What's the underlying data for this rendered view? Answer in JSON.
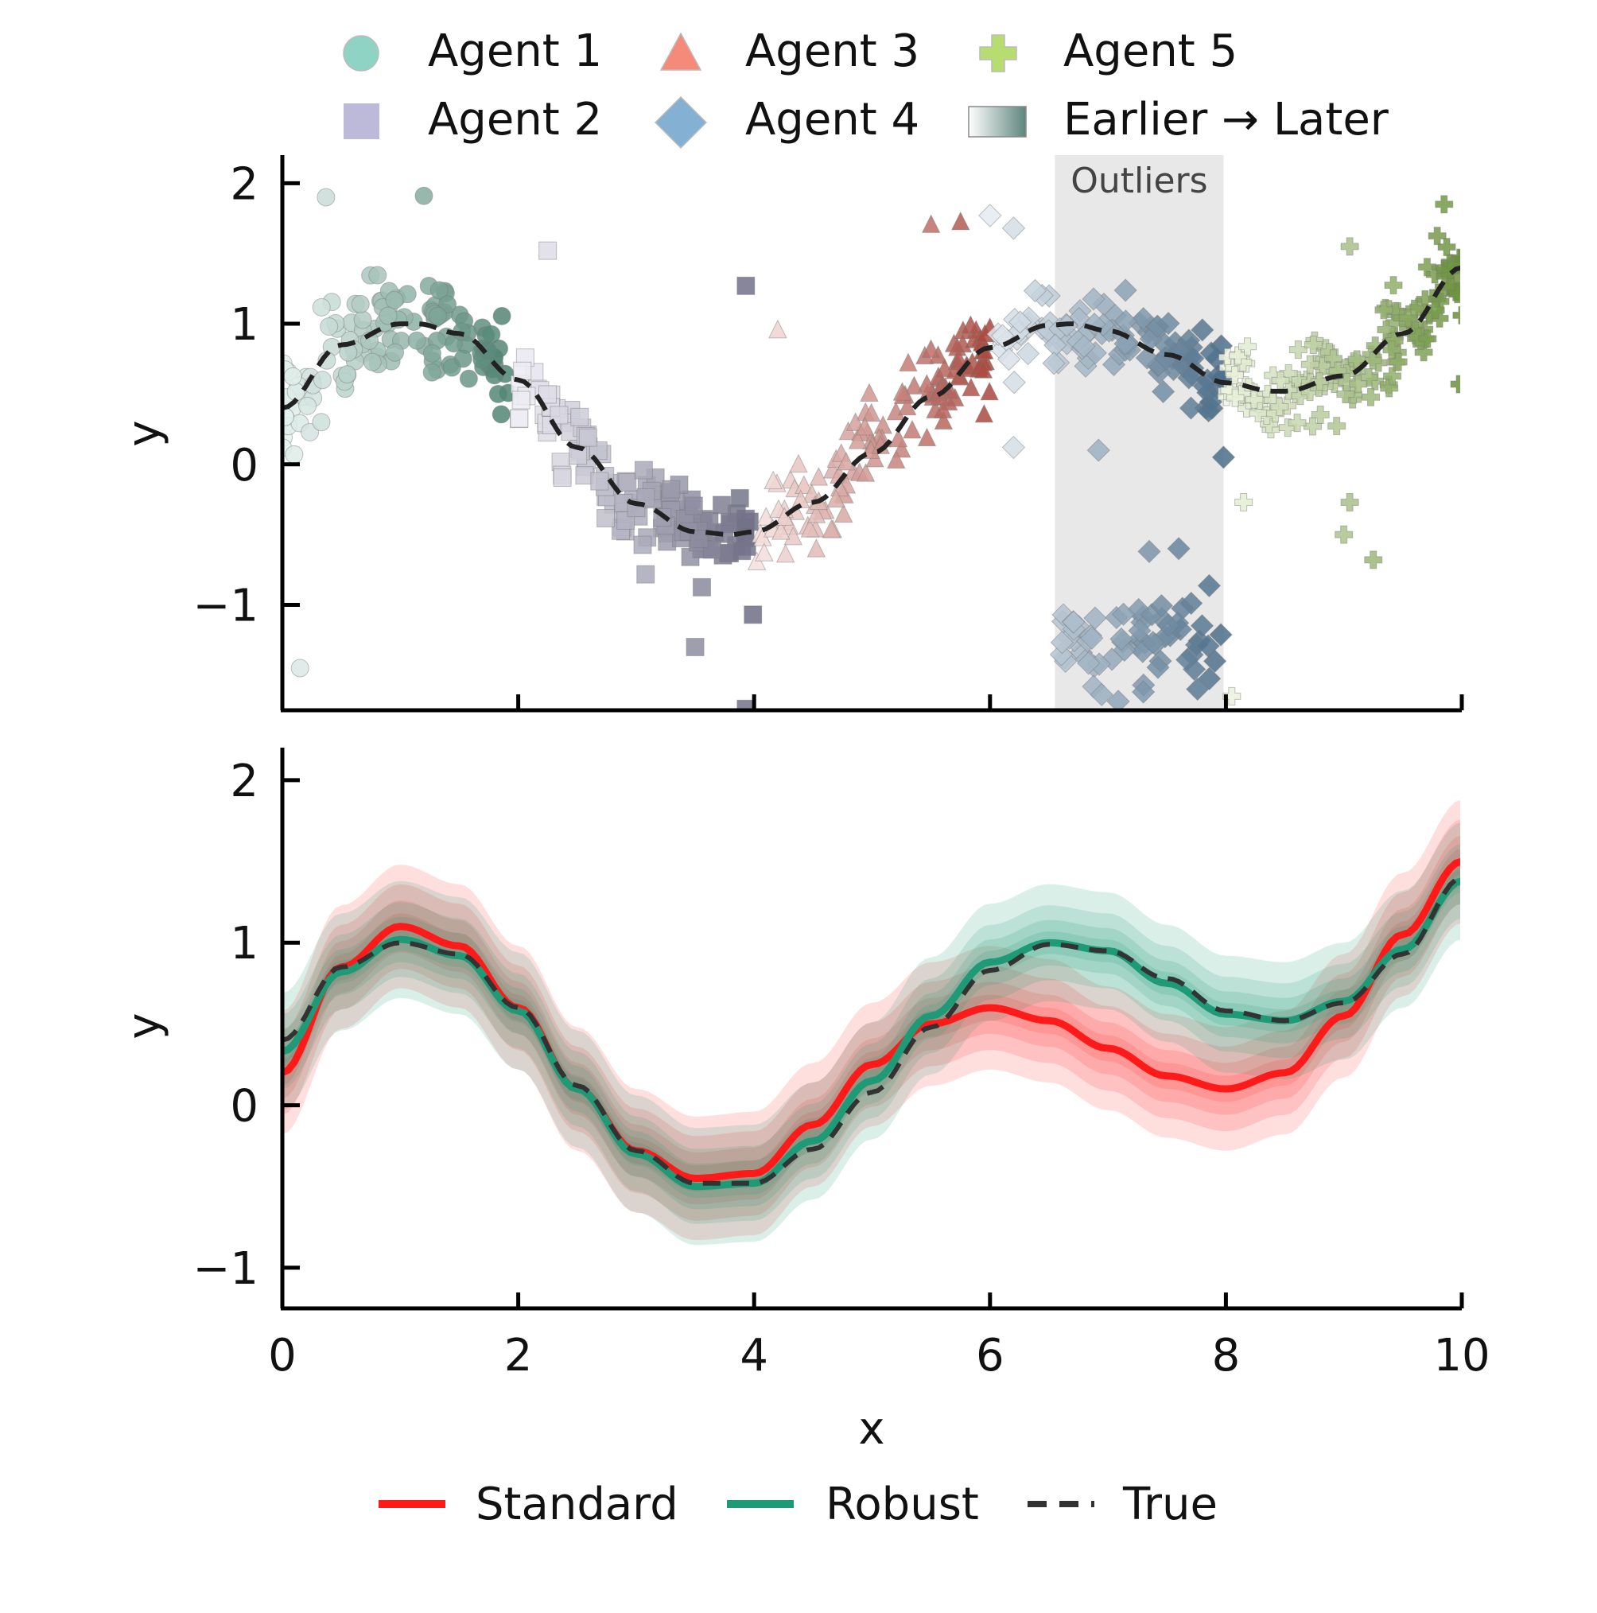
{
  "chart_data": [
    {
      "type": "scatter",
      "panel": "top",
      "xlabel": "",
      "ylabel": "y",
      "xlim": [
        0,
        10
      ],
      "ylim": [
        -1.75,
        2.2
      ],
      "xticks": [
        0,
        2,
        4,
        6,
        8,
        10
      ],
      "yticks": [
        -1,
        0,
        1,
        2
      ],
      "ytick_labels": [
        "−1",
        "0",
        "1",
        "2"
      ],
      "grid": false,
      "legend_placement": "top (above plot, 3 columns)",
      "legend": [
        {
          "label": "Agent 1",
          "marker": "circle",
          "color": "#8fd3c4"
        },
        {
          "label": "Agent 2",
          "marker": "square",
          "color": "#bcbad8"
        },
        {
          "label": "Agent 3",
          "marker": "triangle",
          "color": "#f58a7a"
        },
        {
          "label": "Agent 4",
          "marker": "diamond",
          "color": "#84b0d3"
        },
        {
          "label": "Agent 5",
          "marker": "plus",
          "color": "#b7dc6f"
        },
        {
          "label": "Earlier → Later",
          "marker": "gradient",
          "color": "#5e857c"
        }
      ],
      "outlier_region": {
        "label": "Outliers",
        "x": [
          6.55,
          7.98
        ],
        "color": "#e8e8e8"
      },
      "agents": [
        {
          "name": "Agent 1",
          "x_range": [
            0,
            1.92
          ],
          "light_color": "#e6f2ef",
          "dark_color": "#4d8270",
          "marker": "circle",
          "n": 130,
          "noise": 0.18,
          "extra_points": [
            [
              0.37,
              1.9
            ],
            [
              1.2,
              1.91
            ],
            [
              0.15,
              -1.45
            ],
            [
              0.1,
              0.07
            ],
            [
              0.33,
              0.3
            ]
          ]
        },
        {
          "name": "Agent 2",
          "x_range": [
            2.0,
            4.0
          ],
          "light_color": "#eeedf5",
          "dark_color": "#6e6d85",
          "marker": "square",
          "n": 130,
          "noise": 0.16,
          "extra_points": [
            [
              2.25,
              1.52
            ],
            [
              3.93,
              1.27
            ],
            [
              3.5,
              -1.3
            ],
            [
              3.99,
              -1.07
            ],
            [
              3.93,
              -1.74
            ]
          ]
        },
        {
          "name": "Agent 3",
          "x_range": [
            4.0,
            6.0
          ],
          "light_color": "#f6e3e1",
          "dark_color": "#a9473d",
          "marker": "triangle",
          "n": 130,
          "noise": 0.18,
          "extra_points": [
            [
              4.2,
              0.95
            ],
            [
              5.5,
              1.7
            ],
            [
              5.75,
              1.72
            ],
            [
              5.95,
              0.35
            ]
          ]
        },
        {
          "name": "Agent 4",
          "x_range": [
            6.0,
            7.98
          ],
          "light_color": "#e4ebf1",
          "dark_color": "#4a6d89",
          "marker": "diamond",
          "n": 110,
          "noise": 0.14,
          "outlier_n": 65,
          "outlier_center": -1.25,
          "outlier_x_range": [
            6.55,
            7.98
          ],
          "extra_points": [
            [
              6.0,
              1.77
            ],
            [
              6.2,
              1.68
            ],
            [
              6.2,
              0.12
            ],
            [
              6.92,
              0.1
            ],
            [
              7.98,
              0.05
            ],
            [
              7.6,
              -0.6
            ],
            [
              7.35,
              -0.62
            ],
            [
              7.3,
              -1.62
            ]
          ]
        },
        {
          "name": "Agent 5",
          "x_range": [
            8.0,
            10.0
          ],
          "light_color": "#eef5e0",
          "dark_color": "#6a913a",
          "marker": "plus",
          "n": 150,
          "noise": 0.15,
          "extra_points": [
            [
              8.15,
              -0.27
            ],
            [
              9.05,
              -0.27
            ],
            [
              9.0,
              -0.5
            ],
            [
              9.25,
              -0.68
            ],
            [
              9.98,
              0.57
            ],
            [
              9.05,
              1.55
            ],
            [
              9.85,
              1.85
            ],
            [
              8.05,
              -1.65
            ]
          ]
        }
      ],
      "true_function": {
        "label": "True",
        "style": "dashed",
        "color": "#222222",
        "samples_x": [
          0,
          0.5,
          1.0,
          1.15,
          1.5,
          2.0,
          2.5,
          3.0,
          3.5,
          3.8,
          4.0,
          4.5,
          5.0,
          5.5,
          6.0,
          6.5,
          6.7,
          7.0,
          7.5,
          8.0,
          8.4,
          8.5,
          9.0,
          9.5,
          10.0
        ],
        "samples_y": [
          0.4,
          0.85,
          1.0,
          1.0,
          0.93,
          0.6,
          0.12,
          -0.28,
          -0.48,
          -0.5,
          -0.48,
          -0.27,
          0.08,
          0.48,
          0.83,
          0.99,
          1.0,
          0.95,
          0.78,
          0.58,
          0.52,
          0.52,
          0.63,
          0.93,
          1.4
        ]
      }
    },
    {
      "type": "line",
      "panel": "bottom",
      "xlabel": "x",
      "ylabel": "y",
      "xlim": [
        0,
        10
      ],
      "ylim": [
        -1.25,
        2.2
      ],
      "xticks": [
        0,
        2,
        4,
        6,
        8,
        10
      ],
      "xtick_labels": [
        "0",
        "2",
        "4",
        "6",
        "8",
        "10"
      ],
      "yticks": [
        -1,
        0,
        1,
        2
      ],
      "ytick_labels": [
        "−1",
        "0",
        "1",
        "2"
      ],
      "grid": false,
      "legend_placement": "bottom (below plot, 3 columns)",
      "x": [
        0,
        0.5,
        1.0,
        1.5,
        2.0,
        2.5,
        3.0,
        3.5,
        4.0,
        4.5,
        5.0,
        5.5,
        6.0,
        6.5,
        7.0,
        7.5,
        8.0,
        8.5,
        9.0,
        9.5,
        10.0
      ],
      "series": [
        {
          "name": "Standard",
          "color": "#ff1a1a",
          "style": "solid",
          "y": [
            0.2,
            0.85,
            1.1,
            0.98,
            0.6,
            0.1,
            -0.28,
            -0.45,
            -0.42,
            -0.12,
            0.25,
            0.5,
            0.6,
            0.52,
            0.35,
            0.18,
            0.1,
            0.2,
            0.55,
            1.05,
            1.5
          ],
          "band_halfwidths": [
            0.08,
            0.16,
            0.26,
            0.38
          ]
        },
        {
          "name": "Robust",
          "color": "#1f9a77",
          "style": "solid",
          "y": [
            0.33,
            0.82,
            1.02,
            0.92,
            0.58,
            0.1,
            -0.3,
            -0.5,
            -0.48,
            -0.22,
            0.15,
            0.55,
            0.88,
            1.0,
            0.95,
            0.75,
            0.56,
            0.52,
            0.64,
            0.96,
            1.38
          ],
          "band_halfwidths": [
            0.07,
            0.14,
            0.23,
            0.36
          ]
        },
        {
          "name": "True",
          "color": "#333333",
          "style": "dashed",
          "y": [
            0.4,
            0.85,
            1.0,
            0.93,
            0.6,
            0.12,
            -0.28,
            -0.48,
            -0.48,
            -0.27,
            0.08,
            0.48,
            0.83,
            0.99,
            0.95,
            0.78,
            0.58,
            0.52,
            0.63,
            0.93,
            1.4
          ]
        }
      ]
    }
  ]
}
